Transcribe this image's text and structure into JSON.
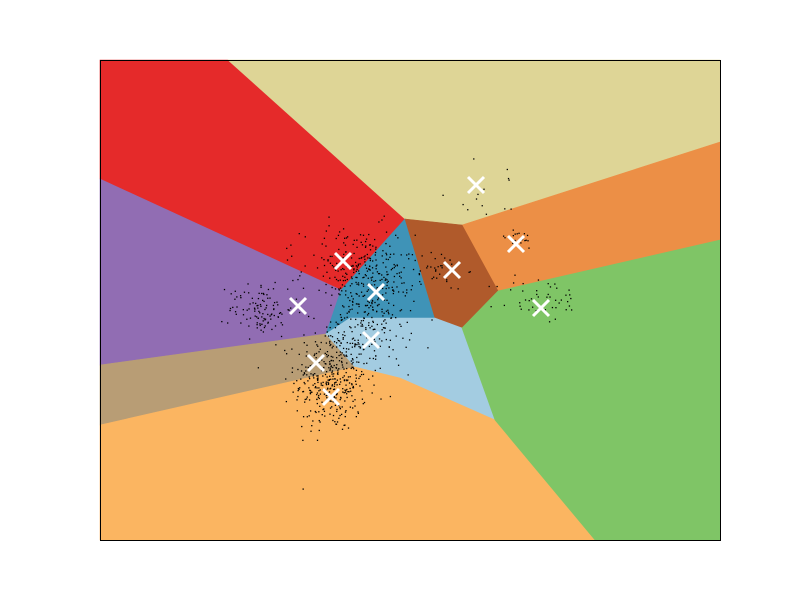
{
  "chart_data": {
    "type": "scatter",
    "title": "",
    "xlabel": "",
    "ylabel": "",
    "xticks": [],
    "yticks": [],
    "grid": false,
    "xlim": [
      0,
      620
    ],
    "ylim": [
      0,
      480
    ],
    "regions": [
      {
        "name": "red",
        "color": "#e52a2a",
        "polygon": [
          [
            0,
            480
          ],
          [
            128,
            480
          ],
          [
            305,
            321
          ],
          [
            241,
            250
          ],
          [
            0,
            361
          ]
        ]
      },
      {
        "name": "beige",
        "color": "#ded596",
        "polygon": [
          [
            128,
            480
          ],
          [
            620,
            480
          ],
          [
            620,
            398
          ],
          [
            362,
            315
          ],
          [
            305,
            321
          ]
        ]
      },
      {
        "name": "orange",
        "color": "#ec8f46",
        "polygon": [
          [
            362,
            315
          ],
          [
            620,
            398
          ],
          [
            620,
            300
          ],
          [
            398,
            249
          ]
        ]
      },
      {
        "name": "purple",
        "color": "#916db3",
        "polygon": [
          [
            0,
            361
          ],
          [
            241,
            250
          ],
          [
            226,
            206
          ],
          [
            0,
            175
          ]
        ]
      },
      {
        "name": "teal",
        "color": "#3f93b7",
        "polygon": [
          [
            241,
            250
          ],
          [
            305,
            321
          ],
          [
            335,
            222
          ],
          [
            250,
            222
          ],
          [
            226,
            206
          ]
        ]
      },
      {
        "name": "brown",
        "color": "#b05a2b",
        "polygon": [
          [
            305,
            321
          ],
          [
            362,
            315
          ],
          [
            398,
            249
          ],
          [
            362,
            212
          ],
          [
            335,
            222
          ]
        ]
      },
      {
        "name": "tan",
        "color": "#b89d75",
        "polygon": [
          [
            0,
            175
          ],
          [
            226,
            206
          ],
          [
            255,
            173
          ],
          [
            0,
            115
          ]
        ]
      },
      {
        "name": "light-blue",
        "color": "#a3cce1",
        "polygon": [
          [
            226,
            206
          ],
          [
            250,
            222
          ],
          [
            335,
            222
          ],
          [
            362,
            212
          ],
          [
            395,
            120
          ],
          [
            300,
            162
          ],
          [
            255,
            173
          ]
        ]
      },
      {
        "name": "light-orange",
        "color": "#fbb561",
        "polygon": [
          [
            0,
            115
          ],
          [
            255,
            173
          ],
          [
            300,
            162
          ],
          [
            395,
            120
          ],
          [
            495,
            0
          ],
          [
            0,
            0
          ]
        ]
      },
      {
        "name": "green",
        "color": "#7fc566",
        "polygon": [
          [
            362,
            212
          ],
          [
            398,
            249
          ],
          [
            620,
            300
          ],
          [
            620,
            0
          ],
          [
            495,
            0
          ],
          [
            395,
            120
          ]
        ]
      }
    ],
    "centroids": [
      [
        243,
        279
      ],
      [
        376,
        355
      ],
      [
        352,
        270
      ],
      [
        416,
        296
      ],
      [
        441,
        232
      ],
      [
        198,
        234
      ],
      [
        276,
        248
      ],
      [
        271,
        200
      ],
      [
        216,
        177
      ],
      [
        231,
        143
      ]
    ],
    "clusters": [
      {
        "cx": 231,
        "cy": 160,
        "sx": 18,
        "sy": 26,
        "n": 380
      },
      {
        "cx": 272,
        "cy": 224,
        "sx": 20,
        "sy": 28,
        "n": 230
      },
      {
        "cx": 258,
        "cy": 270,
        "sx": 28,
        "sy": 22,
        "n": 230
      },
      {
        "cx": 161,
        "cy": 232,
        "sx": 16,
        "sy": 14,
        "n": 110
      },
      {
        "cx": 338,
        "cy": 270,
        "sx": 14,
        "sy": 10,
        "n": 35
      },
      {
        "cx": 441,
        "cy": 240,
        "sx": 22,
        "sy": 12,
        "n": 45
      },
      {
        "cx": 418,
        "cy": 300,
        "sx": 10,
        "sy": 5,
        "n": 22
      },
      {
        "cx": 392,
        "cy": 350,
        "sx": 30,
        "sy": 15,
        "n": 14
      }
    ]
  }
}
